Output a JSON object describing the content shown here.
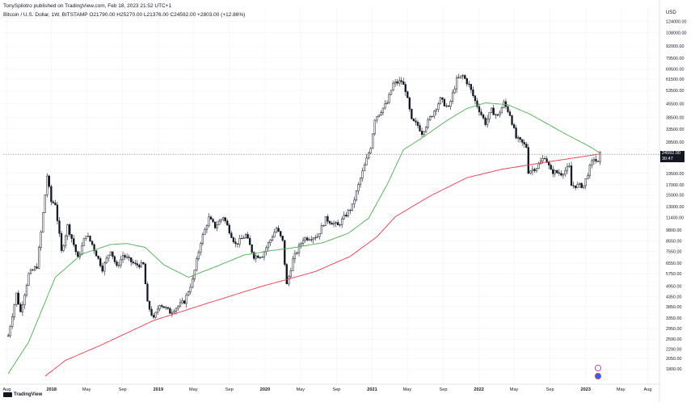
{
  "header": {
    "publisher": "TonySpilotro published on TradingView.com, Feb 18, 2023 21:52 UTC+1",
    "symbol": "Bitcoin / U.S. Dollar, 1W, BITSTAMP",
    "ohlc": "O21790.00  H25270.00  L21376.00  C24592.00  +2803.00 (+12.86%)"
  },
  "price_scale": {
    "currency": "USD",
    "labels": [
      "124000.00",
      "108000.00",
      "92000.00",
      "79500.00",
      "69500.00",
      "61500.00",
      "53500.00",
      "45500.00",
      "38500.00",
      "33500.00",
      "28500.00",
      "19500.00",
      "17000.00",
      "15000.00",
      "13000.00",
      "11400.00",
      "9800.00",
      "8550.00",
      "7550.00",
      "6550.00",
      "5750.00",
      "4950.00",
      "4350.00",
      "3850.00",
      "3350.00",
      "2950.00",
      "2590.00",
      "2290.00",
      "2050.00",
      "1800.00"
    ]
  },
  "last_price": {
    "value": "24592.00",
    "countdown": "00:07",
    "sub": "30:47"
  },
  "branding": {
    "logo_text": "TradingView"
  },
  "colors": {
    "sma_green": "#4caf50",
    "sma_red": "#f23645",
    "candle": "#131722",
    "grid": "#f0f3fa"
  },
  "chart_data": {
    "type": "candlestick",
    "title": "Bitcoin / U.S. Dollar, 1W, BITSTAMP",
    "y_scale": "log",
    "ylim": [
      1650,
      135000
    ],
    "x_ticks": [
      "Aug",
      "2018",
      "May",
      "Sep",
      "2019",
      "May",
      "Sep",
      "2020",
      "May",
      "Sep",
      "2021",
      "May",
      "Sep",
      "2022",
      "May",
      "Sep",
      "2023",
      "May",
      "Aug"
    ],
    "x_tick_dates": [
      "2017-08-01",
      "2018-01-01",
      "2018-05-01",
      "2018-09-01",
      "2019-01-01",
      "2019-05-01",
      "2019-09-01",
      "2020-01-01",
      "2020-05-01",
      "2020-09-01",
      "2021-01-01",
      "2021-05-01",
      "2021-09-01",
      "2022-01-01",
      "2022-05-01",
      "2022-09-01",
      "2023-01-01",
      "2023-05-01",
      "2023-08-01"
    ],
    "price_anchors": [
      [
        "2017-08-06",
        2700
      ],
      [
        "2017-09-03",
        4500
      ],
      [
        "2017-09-17",
        3600
      ],
      [
        "2017-10-15",
        5700
      ],
      [
        "2017-11-12",
        6300
      ],
      [
        "2017-11-26",
        9500
      ],
      [
        "2017-12-17",
        19000
      ],
      [
        "2017-12-31",
        13800
      ],
      [
        "2018-01-14",
        13500
      ],
      [
        "2018-02-04",
        7500
      ],
      [
        "2018-02-25",
        10300
      ],
      [
        "2018-03-18",
        8200
      ],
      [
        "2018-04-01",
        6900
      ],
      [
        "2018-04-29",
        9300
      ],
      [
        "2018-05-20",
        8200
      ],
      [
        "2018-06-24",
        6100
      ],
      [
        "2018-07-22",
        7700
      ],
      [
        "2018-08-12",
        6200
      ],
      [
        "2018-09-02",
        7200
      ],
      [
        "2018-10-14",
        6400
      ],
      [
        "2018-11-11",
        6400
      ],
      [
        "2018-11-25",
        4000
      ],
      [
        "2018-12-16",
        3300
      ],
      [
        "2019-01-06",
        4000
      ],
      [
        "2019-02-10",
        3600
      ],
      [
        "2019-03-31",
        4100
      ],
      [
        "2019-04-28",
        5300
      ],
      [
        "2019-05-26",
        8500
      ],
      [
        "2019-06-23",
        11300
      ],
      [
        "2019-07-14",
        10200
      ],
      [
        "2019-08-11",
        11500
      ],
      [
        "2019-09-22",
        8200
      ],
      [
        "2019-10-27",
        9200
      ],
      [
        "2019-11-24",
        7100
      ],
      [
        "2019-12-22",
        7200
      ],
      [
        "2020-02-09",
        10000
      ],
      [
        "2020-03-01",
        8500
      ],
      [
        "2020-03-15",
        5000
      ],
      [
        "2020-04-05",
        6800
      ],
      [
        "2020-05-10",
        8800
      ],
      [
        "2020-06-28",
        9100
      ],
      [
        "2020-07-26",
        11200
      ],
      [
        "2020-09-06",
        10300
      ],
      [
        "2020-10-25",
        13100
      ],
      [
        "2020-11-22",
        18300
      ],
      [
        "2020-12-27",
        27000
      ],
      [
        "2021-01-10",
        38000
      ],
      [
        "2021-02-21",
        46000
      ],
      [
        "2021-03-14",
        58000
      ],
      [
        "2021-04-11",
        60000
      ],
      [
        "2021-04-25",
        54000
      ],
      [
        "2021-05-16",
        37000
      ],
      [
        "2021-06-06",
        35000
      ],
      [
        "2021-06-20",
        32000
      ],
      [
        "2021-07-25",
        40000
      ],
      [
        "2021-08-22",
        48000
      ],
      [
        "2021-09-19",
        43000
      ],
      [
        "2021-10-17",
        61000
      ],
      [
        "2021-11-07",
        64000
      ],
      [
        "2021-11-28",
        57000
      ],
      [
        "2021-12-19",
        47000
      ],
      [
        "2022-01-23",
        36000
      ],
      [
        "2022-02-13",
        42000
      ],
      [
        "2022-03-06",
        39000
      ],
      [
        "2022-03-27",
        46000
      ],
      [
        "2022-04-17",
        40000
      ],
      [
        "2022-05-08",
        30000
      ],
      [
        "2022-06-12",
        27000
      ],
      [
        "2022-06-19",
        20000
      ],
      [
        "2022-07-17",
        21000
      ],
      [
        "2022-08-14",
        24000
      ],
      [
        "2022-09-04",
        20000
      ],
      [
        "2022-10-09",
        19500
      ],
      [
        "2022-11-06",
        21000
      ],
      [
        "2022-11-13",
        16800
      ],
      [
        "2022-12-25",
        16800
      ],
      [
        "2023-01-15",
        21000
      ],
      [
        "2023-01-29",
        23500
      ],
      [
        "2023-02-12",
        22000
      ],
      [
        "2023-02-19",
        24592
      ]
    ],
    "series": [
      {
        "name": "",
        "type": "sma",
        "color": "#4caf50",
        "anchors": [
          [
            "2017-08-06",
            1700
          ],
          [
            "2017-10-15",
            2500
          ],
          [
            "2018-01-14",
            5500
          ],
          [
            "2018-04-15",
            7300
          ],
          [
            "2018-07-22",
            8200
          ],
          [
            "2018-09-16",
            8300
          ],
          [
            "2018-11-18",
            7900
          ],
          [
            "2019-01-20",
            6400
          ],
          [
            "2019-04-14",
            5500
          ],
          [
            "2019-07-21",
            6300
          ],
          [
            "2019-10-20",
            7200
          ],
          [
            "2020-01-19",
            7600
          ],
          [
            "2020-04-12",
            7900
          ],
          [
            "2020-07-19",
            8400
          ],
          [
            "2020-10-11",
            9400
          ],
          [
            "2020-12-20",
            11300
          ],
          [
            "2021-02-21",
            17000
          ],
          [
            "2021-04-18",
            26000
          ],
          [
            "2021-06-20",
            30000
          ],
          [
            "2021-09-12",
            37000
          ],
          [
            "2021-11-21",
            43000
          ],
          [
            "2022-01-23",
            46000
          ],
          [
            "2022-04-10",
            45000
          ],
          [
            "2022-06-26",
            40000
          ],
          [
            "2022-10-16",
            32000
          ],
          [
            "2023-01-15",
            27000
          ],
          [
            "2023-02-19",
            25000
          ]
        ]
      },
      {
        "name": "",
        "type": "sma",
        "color": "#f23645",
        "anchors": [
          [
            "2017-12-10",
            1650
          ],
          [
            "2018-02-18",
            2000
          ],
          [
            "2018-06-17",
            2400
          ],
          [
            "2018-12-16",
            3250
          ],
          [
            "2019-06-16",
            4000
          ],
          [
            "2019-12-15",
            4900
          ],
          [
            "2020-03-15",
            5350
          ],
          [
            "2020-06-21",
            5900
          ],
          [
            "2020-10-18",
            7100
          ],
          [
            "2021-01-17",
            9000
          ],
          [
            "2021-03-21",
            11500
          ],
          [
            "2021-07-18",
            14800
          ],
          [
            "2021-11-21",
            18500
          ],
          [
            "2022-03-20",
            20500
          ],
          [
            "2022-08-14",
            22300
          ],
          [
            "2023-02-19",
            24700
          ]
        ]
      }
    ]
  }
}
